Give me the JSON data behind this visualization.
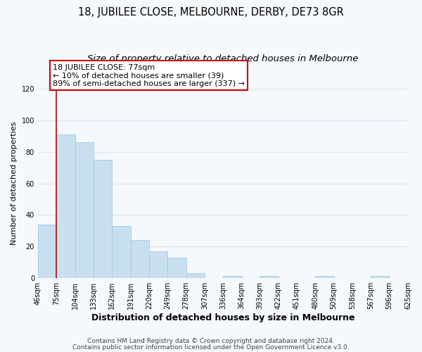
{
  "title": "18, JUBILEE CLOSE, MELBOURNE, DERBY, DE73 8GR",
  "subtitle": "Size of property relative to detached houses in Melbourne",
  "xlabel": "Distribution of detached houses by size in Melbourne",
  "ylabel": "Number of detached properties",
  "bar_color": "#c8dff0",
  "bar_edge_color": "#a8c8e8",
  "redline_color": "#cc0000",
  "redline_x": 75,
  "bins": [
    46,
    75,
    104,
    133,
    162,
    191,
    220,
    249,
    278,
    307,
    336,
    364,
    393,
    422,
    451,
    480,
    509,
    538,
    567,
    596,
    625
  ],
  "bin_labels": [
    "46sqm",
    "75sqm",
    "104sqm",
    "133sqm",
    "162sqm",
    "191sqm",
    "220sqm",
    "249sqm",
    "278sqm",
    "307sqm",
    "336sqm",
    "364sqm",
    "393sqm",
    "422sqm",
    "451sqm",
    "480sqm",
    "509sqm",
    "538sqm",
    "567sqm",
    "596sqm",
    "625sqm"
  ],
  "bar_heights": [
    34,
    91,
    86,
    75,
    33,
    24,
    17,
    13,
    3,
    0,
    1,
    0,
    1,
    0,
    0,
    1,
    0,
    0,
    1,
    0,
    1
  ],
  "ylim": [
    0,
    120
  ],
  "yticks": [
    0,
    20,
    40,
    60,
    80,
    100,
    120
  ],
  "annotation_title": "18 JUBILEE CLOSE: 77sqm",
  "annotation_line1": "← 10% of detached houses are smaller (39)",
  "annotation_line2": "89% of semi-detached houses are larger (337) →",
  "footnote1": "Contains HM Land Registry data © Crown copyright and database right 2024.",
  "footnote2": "Contains public sector information licensed under the Open Government Licence v3.0.",
  "bg_color": "#f5f8fc",
  "grid_color": "#d8e8f5",
  "annotation_box_color": "#ffffff",
  "annotation_box_edge": "#cc0000",
  "title_fontsize": 10.5,
  "subtitle_fontsize": 9.5,
  "xlabel_fontsize": 9,
  "ylabel_fontsize": 8,
  "tick_fontsize": 7,
  "annotation_fontsize": 8,
  "footnote_fontsize": 6.5
}
